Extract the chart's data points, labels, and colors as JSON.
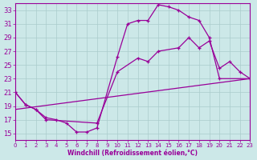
{
  "xlabel": "Windchill (Refroidissement éolien,°C)",
  "xlim": [
    0,
    23
  ],
  "ylim": [
    14,
    34
  ],
  "yticks": [
    15,
    17,
    19,
    21,
    23,
    25,
    27,
    29,
    31,
    33
  ],
  "xticks": [
    0,
    1,
    2,
    3,
    4,
    5,
    6,
    7,
    8,
    9,
    10,
    11,
    12,
    13,
    14,
    15,
    16,
    17,
    18,
    19,
    20,
    21,
    22,
    23
  ],
  "bg_color": "#cce8e8",
  "line_color": "#990099",
  "grid_color": "#aacccc",
  "line1_x": [
    0,
    1,
    2,
    3,
    4,
    5,
    6,
    7,
    8,
    10,
    11,
    12,
    13,
    14,
    15,
    16,
    17,
    18,
    19,
    20,
    23
  ],
  "line1_y": [
    21.0,
    19.2,
    18.5,
    17.3,
    17.0,
    16.5,
    15.2,
    15.2,
    15.8,
    26.2,
    31.0,
    31.5,
    31.5,
    33.8,
    33.5,
    33.0,
    32.0,
    31.5,
    29.0,
    23.0,
    23.0
  ],
  "line2_x": [
    0,
    1,
    2,
    3,
    8,
    10,
    12,
    13,
    14,
    16,
    17,
    18,
    19,
    20,
    21,
    22,
    23
  ],
  "line2_y": [
    21.0,
    19.2,
    18.5,
    17.0,
    16.5,
    24.0,
    26.0,
    25.5,
    27.0,
    27.5,
    29.0,
    27.5,
    28.5,
    24.5,
    25.5,
    24.0,
    23.0
  ],
  "line3_x": [
    0,
    23
  ],
  "line3_y": [
    18.5,
    23.0
  ]
}
